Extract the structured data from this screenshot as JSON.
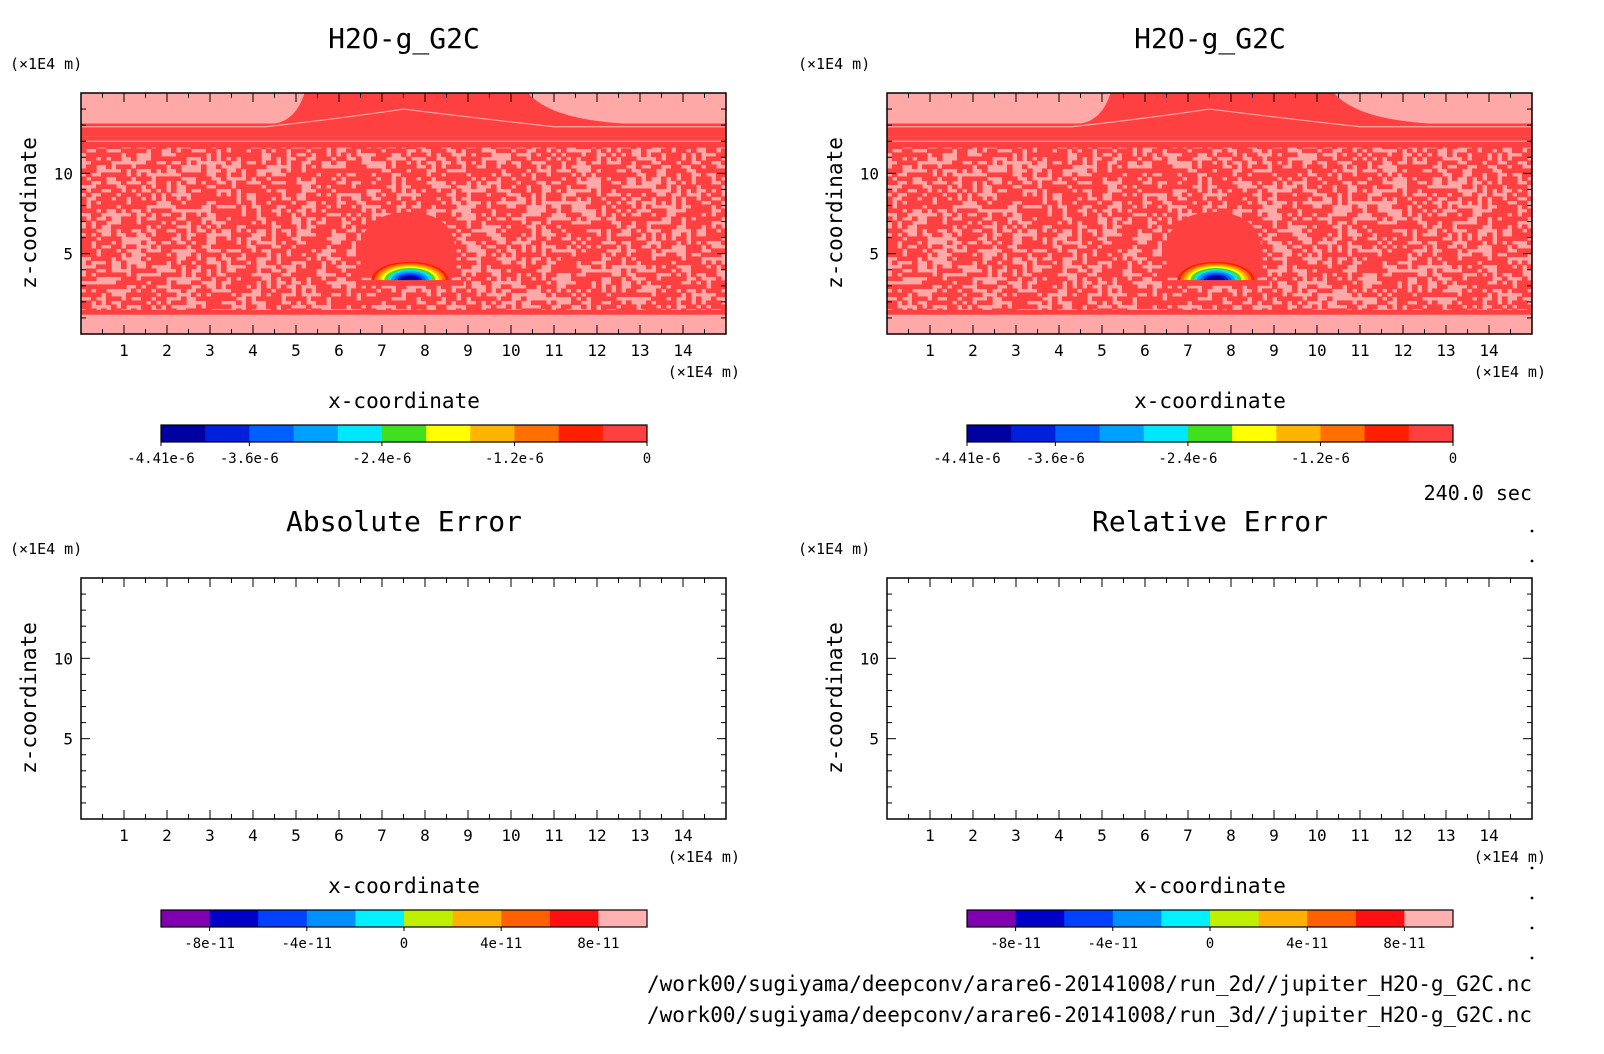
{
  "chart_data": [
    {
      "type": "heatmap",
      "panel": "top-left",
      "title": "H2O-g_G2C",
      "xlabel": "x-coordinate",
      "ylabel": "z-coordinate",
      "xunit": "(×1E4 m)",
      "yunit": "(×1E4 m)",
      "xlim": [
        0,
        15
      ],
      "ylim": [
        0,
        15
      ],
      "xticks": [
        "1",
        "2",
        "3",
        "4",
        "5",
        "6",
        "7",
        "8",
        "9",
        "10",
        "11",
        "12",
        "13",
        "14"
      ],
      "yticks": [
        "5",
        "10"
      ],
      "colorbar": {
        "range": [
          -4.41e-06,
          0
        ],
        "tick_labels": [
          "-4.41e-6",
          "-3.6e-6",
          "-2.4e-6",
          "-1.2e-6",
          "0"
        ],
        "colors": [
          "#0000a0",
          "#0020dc",
          "#0060ff",
          "#00a0ff",
          "#00e6ff",
          "#40e020",
          "#ffff00",
          "#ffb400",
          "#ff7000",
          "#ff2000",
          "#ff4040"
        ]
      },
      "features": "field near 0 everywhere with negative anomaly bubble centered near x=7.7, z=3.5"
    },
    {
      "type": "heatmap",
      "panel": "top-right",
      "title": "H2O-g_G2C",
      "xlabel": "x-coordinate",
      "ylabel": "z-coordinate",
      "xunit": "(×1E4 m)",
      "yunit": "(×1E4 m)",
      "xlim": [
        0,
        15
      ],
      "ylim": [
        0,
        15
      ],
      "xticks": [
        "1",
        "2",
        "3",
        "4",
        "5",
        "6",
        "7",
        "8",
        "9",
        "10",
        "11",
        "12",
        "13",
        "14"
      ],
      "yticks": [
        "5",
        "10"
      ],
      "colorbar": {
        "range": [
          -4.41e-06,
          0
        ],
        "tick_labels": [
          "-4.41e-6",
          "-3.6e-6",
          "-2.4e-6",
          "-1.2e-6",
          "0"
        ],
        "colors": [
          "#0000a0",
          "#0020dc",
          "#0060ff",
          "#00a0ff",
          "#00e6ff",
          "#40e020",
          "#ffff00",
          "#ffb400",
          "#ff7000",
          "#ff2000",
          "#ff4040"
        ]
      }
    },
    {
      "type": "heatmap",
      "panel": "bottom-left",
      "title": "Absolute Error",
      "xlabel": "x-coordinate",
      "ylabel": "z-coordinate",
      "xunit": "(×1E4 m)",
      "yunit": "(×1E4 m)",
      "xlim": [
        0,
        15
      ],
      "ylim": [
        0,
        15
      ],
      "xticks": [
        "1",
        "2",
        "3",
        "4",
        "5",
        "6",
        "7",
        "8",
        "9",
        "10",
        "11",
        "12",
        "13",
        "14"
      ],
      "yticks": [
        "5",
        "10"
      ],
      "colorbar": {
        "tick_labels": [
          "-8e-11",
          "-4e-11",
          "0",
          "4e-11",
          "8e-11"
        ],
        "colors": [
          "#8000b0",
          "#0000c8",
          "#0040ff",
          "#0090ff",
          "#00f0ff",
          "#c0f000",
          "#ffb000",
          "#ff6000",
          "#ff1010",
          "#ffb0b0"
        ]
      }
    },
    {
      "type": "heatmap",
      "panel": "bottom-right",
      "title": "Relative Error",
      "xlabel": "x-coordinate",
      "ylabel": "z-coordinate",
      "xunit": "(×1E4 m)",
      "yunit": "(×1E4 m)",
      "xlim": [
        0,
        15
      ],
      "ylim": [
        0,
        15
      ],
      "xticks": [
        "1",
        "2",
        "3",
        "4",
        "5",
        "6",
        "7",
        "8",
        "9",
        "10",
        "11",
        "12",
        "13",
        "14"
      ],
      "yticks": [
        "5",
        "10"
      ],
      "colorbar": {
        "tick_labels": [
          "-8e-11",
          "-4e-11",
          "0",
          "4e-11",
          "8e-11"
        ],
        "colors": [
          "#8000b0",
          "#0000c8",
          "#0040ff",
          "#0090ff",
          "#00f0ff",
          "#c0f000",
          "#ffb000",
          "#ff6000",
          "#ff1010",
          "#ffb0b0"
        ]
      }
    }
  ],
  "time_label": "240.0 sec",
  "footer": {
    "line1": "/work00/sugiyama/deepconv/arare6-20141008/run_2d//jupiter_H2O-g_G2C.nc",
    "line2": "/work00/sugiyama/deepconv/arare6-20141008/run_3d//jupiter_H2O-g_G2C.nc"
  },
  "field_colors": {
    "light": "#ffa8a8",
    "dark": "#ff4040"
  }
}
